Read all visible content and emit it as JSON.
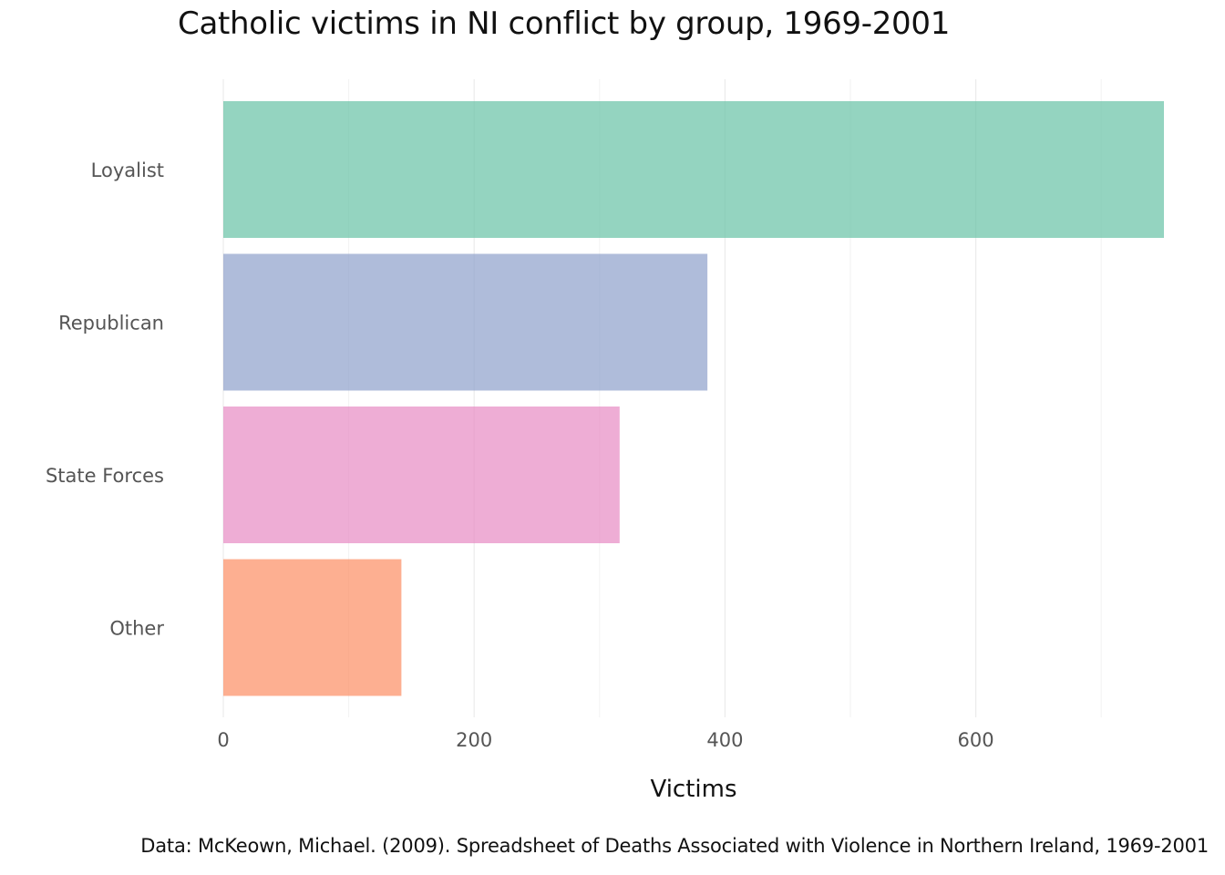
{
  "chart_data": {
    "type": "bar",
    "orientation": "horizontal",
    "title": "Catholic victims in NI conflict by group, 1969-2001",
    "caption": "Data: McKeown, Michael. (2009). Spreadsheet of Deaths Associated with Violence in Northern Ireland, 1969-2001",
    "categories": [
      "Loyalist",
      "Republican",
      "State Forces",
      "Other"
    ],
    "values": [
      750,
      386,
      316,
      142
    ],
    "colors": [
      "#66c2a5",
      "#8da0cb",
      "#e78ac3",
      "#fc8d62"
    ],
    "bar_opacity": 0.7,
    "xlabel": "Victims",
    "ylabel": "",
    "xlim": [
      0,
      750
    ],
    "xticks": [
      0,
      200,
      400,
      600
    ],
    "xtick_labels": [
      "0",
      "200",
      "400",
      "600"
    ],
    "grid": true,
    "legend": "none"
  }
}
